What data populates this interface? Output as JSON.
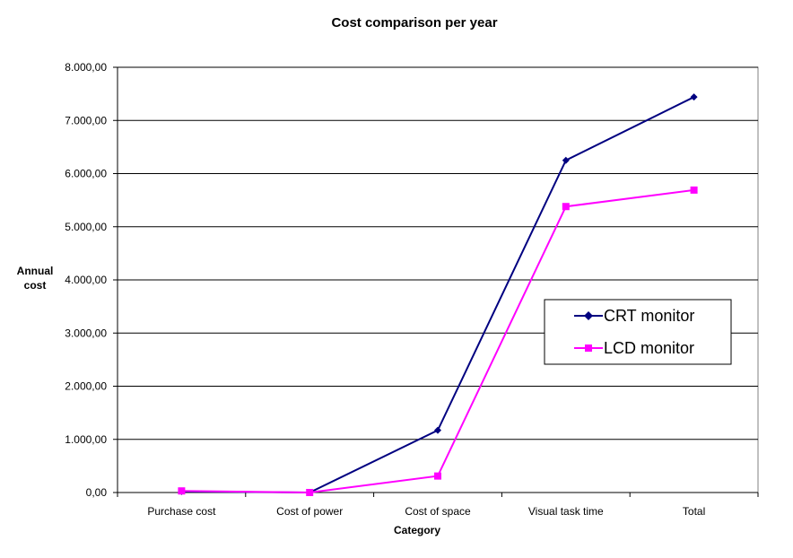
{
  "chart_data": {
    "type": "line",
    "title": "Cost comparison per year",
    "xlabel": "Category",
    "ylabel_lines": [
      "Annual",
      "cost"
    ],
    "categories": [
      "Purchase cost",
      "Cost of power",
      "Cost of space",
      "Visual task time",
      "Total"
    ],
    "ylim": [
      0,
      8000
    ],
    "yticks": [
      0,
      1000,
      2000,
      3000,
      4000,
      5000,
      6000,
      7000,
      8000
    ],
    "ytick_labels": [
      "0,00",
      "1.000,00",
      "2.000,00",
      "3.000,00",
      "4.000,00",
      "5.000,00",
      "6.000,00",
      "7.000,00",
      "8.000,00"
    ],
    "grid": true,
    "legend_position": "right",
    "series": [
      {
        "name": "CRT monitor",
        "marker": "diamond",
        "color": "#000080",
        "values": [
          20,
          0,
          1170,
          6250,
          7440
        ]
      },
      {
        "name": "LCD monitor",
        "marker": "square",
        "color": "#FF00FF",
        "values": [
          30,
          0,
          310,
          5380,
          5690
        ]
      }
    ]
  }
}
